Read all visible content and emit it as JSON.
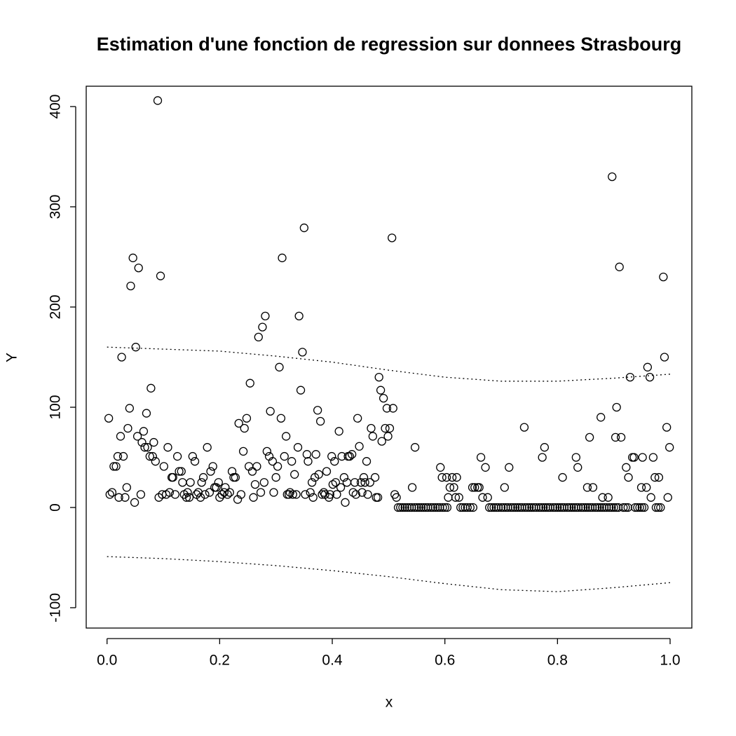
{
  "chart_data": {
    "type": "scatter",
    "title": "Estimation d'une fonction de regression sur donnees Strasbourg",
    "x_label": "x",
    "y_label": "Y",
    "xlim": [
      -0.037,
      1.0386
    ],
    "ylim": [
      -120.3,
      420.3
    ],
    "xticks": [
      {
        "value": 0,
        "label": "0.0"
      },
      {
        "value": 0.2,
        "label": "0.2"
      },
      {
        "value": 0.4,
        "label": "0.4"
      },
      {
        "value": 0.6,
        "label": "0.6"
      },
      {
        "value": 0.8,
        "label": "0.8"
      },
      {
        "value": 1,
        "label": "1.0"
      }
    ],
    "yticks": [
      -100,
      0,
      100,
      200,
      300,
      400
    ],
    "grid": false,
    "color": "#000000",
    "x": [
      0.003,
      0.005,
      0.009,
      0.012,
      0.016,
      0.019,
      0.021,
      0.024,
      0.026,
      0.029,
      0.032,
      0.035,
      0.037,
      0.04,
      0.042,
      0.046,
      0.049,
      0.051,
      0.054,
      0.056,
      0.06,
      0.062,
      0.065,
      0.067,
      0.07,
      0.072,
      0.076,
      0.078,
      0.081,
      0.083,
      0.086,
      0.09,
      0.092,
      0.095,
      0.098,
      0.101,
      0.105,
      0.108,
      0.111,
      0.115,
      0.117,
      0.121,
      0.125,
      0.128,
      0.132,
      0.134,
      0.137,
      0.141,
      0.143,
      0.146,
      0.148,
      0.152,
      0.156,
      0.159,
      0.162,
      0.166,
      0.168,
      0.171,
      0.174,
      0.178,
      0.182,
      0.184,
      0.188,
      0.191,
      0.194,
      0.198,
      0.2,
      0.204,
      0.208,
      0.21,
      0.214,
      0.218,
      0.222,
      0.225,
      0.228,
      0.232,
      0.234,
      0.238,
      0.242,
      0.244,
      0.248,
      0.252,
      0.254,
      0.258,
      0.26,
      0.263,
      0.266,
      0.269,
      0.273,
      0.276,
      0.279,
      0.281,
      0.284,
      0.288,
      0.29,
      0.294,
      0.296,
      0.3,
      0.303,
      0.306,
      0.309,
      0.311,
      0.315,
      0.318,
      0.32,
      0.323,
      0.325,
      0.328,
      0.33,
      0.333,
      0.336,
      0.339,
      0.341,
      0.344,
      0.347,
      0.35,
      0.352,
      0.355,
      0.357,
      0.361,
      0.364,
      0.366,
      0.369,
      0.371,
      0.374,
      0.376,
      0.379,
      0.382,
      0.385,
      0.387,
      0.39,
      0.394,
      0.396,
      0.399,
      0.401,
      0.404,
      0.406,
      0.408,
      0.412,
      0.415,
      0.417,
      0.421,
      0.423,
      0.426,
      0.428,
      0.431,
      0.435,
      0.437,
      0.44,
      0.442,
      0.445,
      0.448,
      0.451,
      0.453,
      0.456,
      0.458,
      0.461,
      0.463,
      0.467,
      0.469,
      0.472,
      0.476,
      0.478,
      0.481,
      0.483,
      0.486,
      0.488,
      0.491,
      0.494,
      0.497,
      0.499,
      0.502,
      0.506,
      0.508,
      0.511,
      0.514,
      0.542,
      0.547,
      0.592,
      0.595,
      0.603,
      0.606,
      0.609,
      0.613,
      0.616,
      0.619,
      0.621,
      0.625,
      0.649,
      0.653,
      0.658,
      0.661,
      0.664,
      0.667,
      0.672,
      0.676,
      0.706,
      0.714,
      0.741,
      0.773,
      0.777,
      0.809,
      0.833,
      0.836,
      0.853,
      0.857,
      0.863,
      0.877,
      0.88,
      0.89,
      0.897,
      0.903,
      0.905,
      0.91,
      0.913,
      0.922,
      0.926,
      0.929,
      0.933,
      0.936,
      0.949,
      0.951,
      0.958,
      0.96,
      0.964,
      0.966,
      0.97,
      0.973,
      0.98,
      0.988,
      0.99,
      0.994,
      0.996,
      0.999,
      0.517,
      0.521,
      0.525,
      0.529,
      0.533,
      0.537,
      0.541,
      0.546,
      0.55,
      0.554,
      0.558,
      0.562,
      0.566,
      0.57,
      0.575,
      0.579,
      0.583,
      0.587,
      0.591,
      0.596,
      0.6,
      0.604,
      0.628,
      0.632,
      0.636,
      0.64,
      0.645,
      0.65,
      0.679,
      0.683,
      0.687,
      0.691,
      0.695,
      0.7,
      0.704,
      0.708,
      0.712,
      0.717,
      0.721,
      0.725,
      0.729,
      0.733,
      0.737,
      0.742,
      0.746,
      0.75,
      0.754,
      0.758,
      0.762,
      0.767,
      0.771,
      0.775,
      0.779,
      0.783,
      0.787,
      0.792,
      0.796,
      0.8,
      0.804,
      0.808,
      0.812,
      0.817,
      0.821,
      0.825,
      0.829,
      0.833,
      0.837,
      0.842,
      0.846,
      0.85,
      0.854,
      0.858,
      0.862,
      0.867,
      0.871,
      0.875,
      0.879,
      0.883,
      0.887,
      0.892,
      0.896,
      0.9,
      0.904,
      0.908,
      0.917,
      0.921,
      0.925,
      0.938,
      0.942,
      0.946,
      0.95,
      0.954,
      0.975,
      0.979,
      0.983
    ],
    "values": [
      89,
      13,
      15,
      41,
      41,
      51,
      10,
      71,
      150,
      51,
      10,
      20,
      79,
      99,
      221,
      249,
      5,
      160,
      71,
      239,
      13,
      65,
      76,
      60,
      94,
      60,
      51,
      119,
      51,
      65,
      46,
      406,
      10,
      231,
      13,
      41,
      13,
      60,
      15,
      30,
      30,
      13,
      51,
      36,
      36,
      25,
      13,
      10,
      15,
      10,
      25,
      51,
      46,
      13,
      15,
      10,
      25,
      30,
      13,
      60,
      15,
      36,
      41,
      20,
      20,
      25,
      10,
      13,
      15,
      20,
      13,
      15,
      36,
      30,
      30,
      8,
      84,
      13,
      56,
      79,
      89,
      41,
      124,
      36,
      10,
      23,
      41,
      170,
      15,
      180,
      25,
      191,
      56,
      51,
      96,
      46,
      15,
      30,
      41,
      140,
      89,
      249,
      51,
      71,
      13,
      13,
      15,
      46,
      13,
      33,
      13,
      60,
      191,
      117,
      155,
      279,
      13,
      53,
      46,
      15,
      25,
      10,
      30,
      53,
      97,
      33,
      86,
      13,
      15,
      13,
      36,
      10,
      13,
      51,
      23,
      46,
      25,
      13,
      76,
      20,
      51,
      30,
      5,
      25,
      51,
      51,
      53,
      15,
      25,
      13,
      89,
      61,
      25,
      15,
      30,
      25,
      46,
      13,
      25,
      79,
      71,
      30,
      10,
      10,
      130,
      117,
      66,
      109,
      79,
      99,
      71,
      79,
      269,
      99,
      13,
      10,
      20,
      60,
      40,
      30,
      30,
      10,
      20,
      30,
      20,
      10,
      30,
      10,
      20,
      20,
      20,
      20,
      50,
      10,
      40,
      10,
      20,
      40,
      80,
      50,
      60,
      30,
      50,
      40,
      20,
      70,
      20,
      90,
      10,
      10,
      330,
      70,
      100,
      240,
      70,
      40,
      30,
      130,
      50,
      50,
      20,
      50,
      20,
      140,
      130,
      10,
      50,
      30,
      30,
      230,
      150,
      80,
      10,
      60,
      0,
      0,
      0,
      0,
      0,
      0,
      0,
      0,
      0,
      0,
      0,
      0,
      0,
      0,
      0,
      0,
      0,
      0,
      0,
      0,
      0,
      0,
      0,
      0,
      0,
      0,
      0,
      0,
      0,
      0,
      0,
      0,
      0,
      0,
      0,
      0,
      0,
      0,
      0,
      0,
      0,
      0,
      0,
      0,
      0,
      0,
      0,
      0,
      0,
      0,
      0,
      0,
      0,
      0,
      0,
      0,
      0,
      0,
      0,
      0,
      0,
      0,
      0,
      0,
      0,
      0,
      0,
      0,
      0,
      0,
      0,
      0,
      0,
      0,
      0,
      0,
      0,
      0,
      0,
      0,
      0,
      0,
      0,
      0,
      0,
      0,
      0,
      0,
      0,
      0,
      0,
      0,
      0,
      0,
      0
    ],
    "lines": [
      {
        "x": [
          0,
          0.1,
          0.2,
          0.3,
          0.4,
          0.5,
          0.6,
          0.7,
          0.8,
          0.9,
          1
        ],
        "values": [
          160,
          158,
          156,
          151,
          145,
          137,
          130,
          126,
          126,
          129,
          133
        ],
        "dash": "dotted"
      },
      {
        "x": [
          0,
          0.1,
          0.2,
          0.3,
          0.4,
          0.5,
          0.6,
          0.7,
          0.8,
          0.9,
          1
        ],
        "values": [
          -49,
          -51,
          -54,
          -58,
          -63,
          -69,
          -76,
          -82,
          -84,
          -80,
          -75
        ],
        "dash": "dotted"
      }
    ]
  }
}
